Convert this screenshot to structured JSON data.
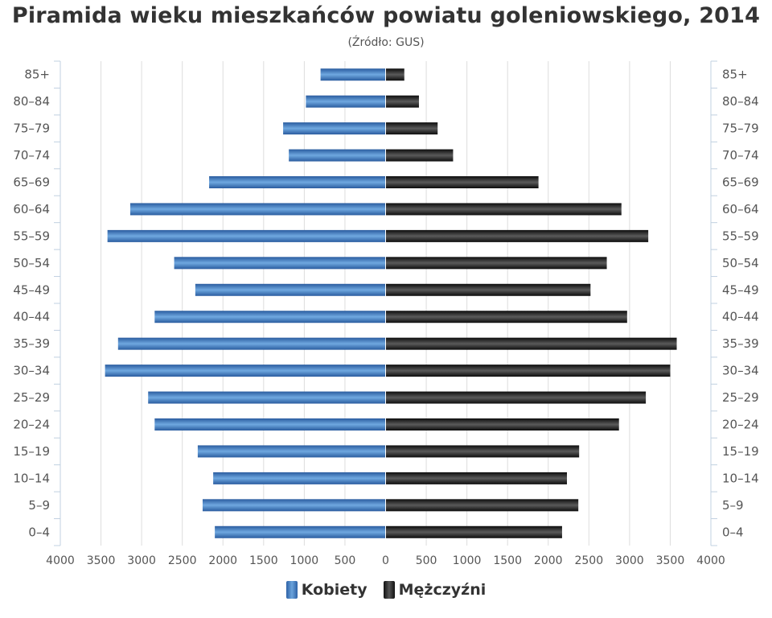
{
  "chart_data": {
    "type": "bar",
    "orientation": "horizontal",
    "title": "Piramida wieku mieszkańców powiatu goleniowskiego, 2014",
    "subtitle": "(Źródło: GUS)",
    "categories": [
      "85+",
      "80–84",
      "75–79",
      "70–74",
      "65–69",
      "60–64",
      "55–59",
      "50–54",
      "45–49",
      "40–44",
      "35–39",
      "30–34",
      "25–29",
      "20–24",
      "15–19",
      "10–14",
      "5–9",
      "0–4"
    ],
    "series": [
      {
        "name": "Kobiety",
        "color": "#3d7cc3",
        "side": "left",
        "values": [
          800,
          980,
          1260,
          1190,
          2170,
          3140,
          3420,
          2600,
          2340,
          2840,
          3290,
          3450,
          2920,
          2840,
          2310,
          2120,
          2250,
          2100
        ]
      },
      {
        "name": "Mężczyźni",
        "color": "#222222",
        "side": "right",
        "values": [
          230,
          410,
          640,
          830,
          1880,
          2900,
          3230,
          2720,
          2520,
          2970,
          3580,
          3500,
          3200,
          2870,
          2380,
          2230,
          2370,
          2170
        ]
      }
    ],
    "xlim": [
      -4000,
      4000
    ],
    "xticks": [
      {
        "value": -4000,
        "label": "4000"
      },
      {
        "value": -3500,
        "label": "3500"
      },
      {
        "value": -3000,
        "label": "3000"
      },
      {
        "value": -2500,
        "label": "2500"
      },
      {
        "value": -2000,
        "label": "2000"
      },
      {
        "value": -1500,
        "label": "1500"
      },
      {
        "value": -1000,
        "label": "1000"
      },
      {
        "value": -500,
        "label": "500"
      },
      {
        "value": 0,
        "label": "0"
      },
      {
        "value": 500,
        "label": "500"
      },
      {
        "value": 1000,
        "label": "1000"
      },
      {
        "value": 1500,
        "label": "1500"
      },
      {
        "value": 2000,
        "label": "2000"
      },
      {
        "value": 2500,
        "label": "2500"
      },
      {
        "value": 3000,
        "label": "3000"
      },
      {
        "value": 3500,
        "label": "3500"
      },
      {
        "value": 4000,
        "label": "4000"
      }
    ],
    "grid": true,
    "legend_position": "bottom-center",
    "category_labels": "both-sides"
  }
}
